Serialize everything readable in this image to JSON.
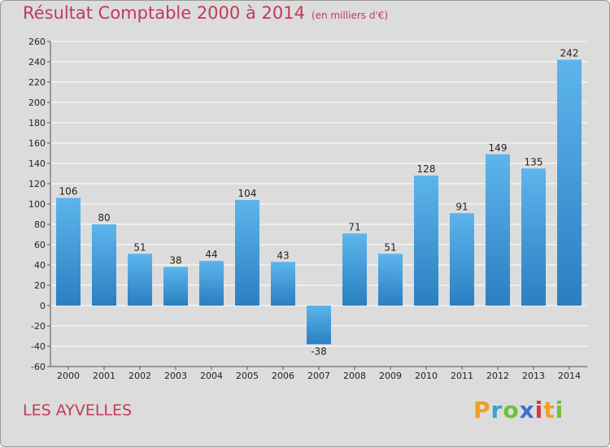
{
  "title": {
    "main": "Résultat Comptable 2000 à 2014",
    "unit": "(en milliers d'€)"
  },
  "commune": "LES AYVELLES",
  "logo": {
    "letters": [
      "P",
      "r",
      "o",
      "x",
      "i",
      "t",
      "i"
    ]
  },
  "colors": {
    "bar_light": "#5db5ec",
    "bar_dark": "#2a7fc1",
    "title": "#c23a5a",
    "background": "#dcdcdc",
    "grid": "#ffffff"
  },
  "chart_data": {
    "type": "bar",
    "title": "Résultat Comptable 2000 à 2014",
    "xlabel": "",
    "ylabel": "en milliers d'€",
    "categories": [
      "2000",
      "2001",
      "2002",
      "2003",
      "2004",
      "2005",
      "2006",
      "2007",
      "2008",
      "2009",
      "2010",
      "2011",
      "2012",
      "2013",
      "2014"
    ],
    "values": [
      106,
      80,
      51,
      38,
      44,
      104,
      43,
      -38,
      71,
      51,
      128,
      91,
      149,
      135,
      242
    ],
    "ylim": [
      -60,
      260
    ],
    "yticks": [
      -60,
      -40,
      -20,
      0,
      20,
      40,
      60,
      80,
      100,
      120,
      140,
      160,
      180,
      200,
      220,
      240,
      260
    ],
    "grid": true
  }
}
